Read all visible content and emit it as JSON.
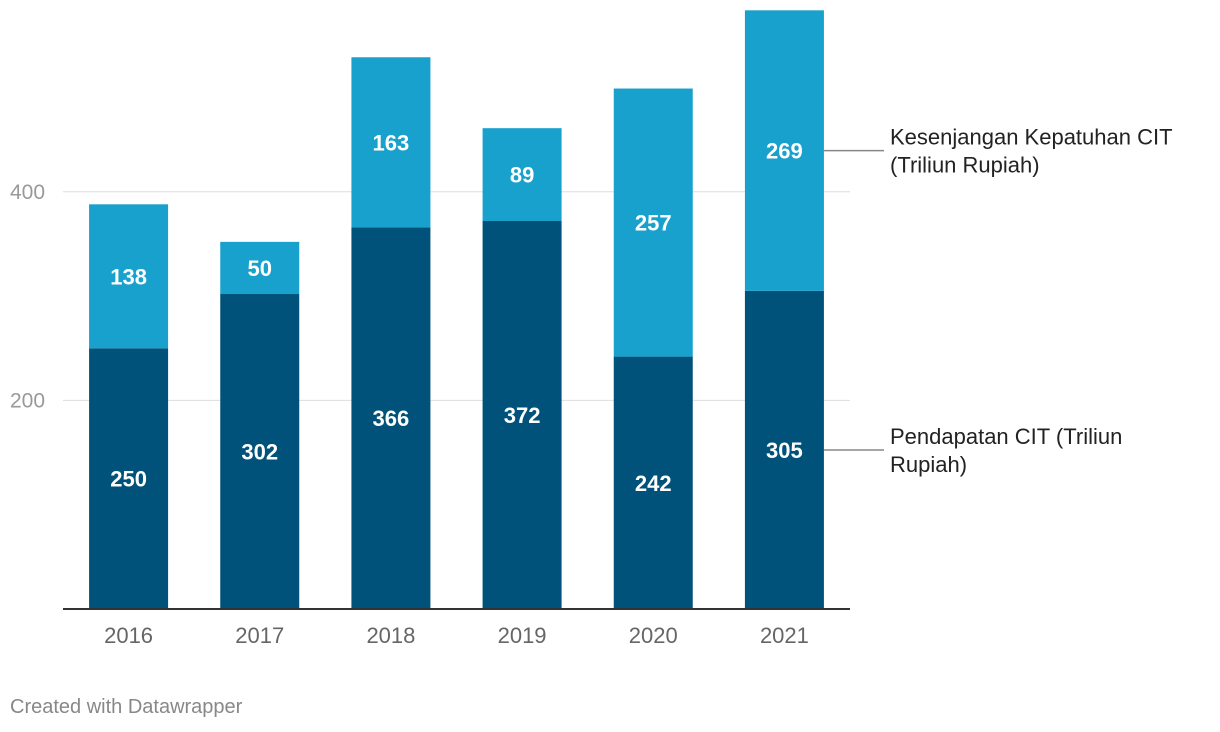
{
  "chart_data": {
    "type": "bar",
    "stacked": true,
    "categories": [
      "2016",
      "2017",
      "2018",
      "2019",
      "2020",
      "2021"
    ],
    "series": [
      {
        "name": "Pendapatan CIT (Triliun Rupiah)",
        "color": "#00527a",
        "values": [
          250,
          302,
          366,
          372,
          242,
          305
        ]
      },
      {
        "name": "Kesenjangan Kepatuhan CIT (Triliun Rupiah)",
        "color": "#18a1cd",
        "values": [
          138,
          50,
          163,
          89,
          257,
          269
        ]
      }
    ],
    "yticks": [
      200,
      400
    ],
    "ylim": [
      0,
      574
    ],
    "grid": true,
    "legend_placement": "right-inline"
  },
  "footer": {
    "text": "Created with Datawrapper"
  }
}
